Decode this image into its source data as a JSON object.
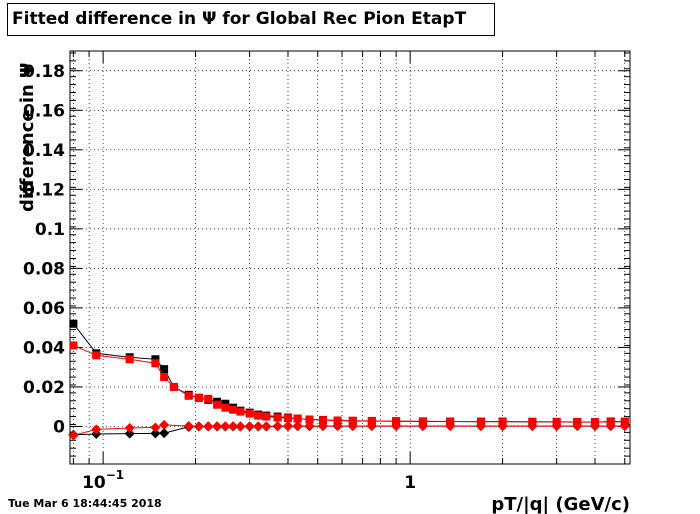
{
  "chart_data": {
    "type": "scatter",
    "title": "Fitted difference in  Ψ  for Global Rec Pion EtapT",
    "xlabel": "pT/|q| (GeV/c)",
    "ylabel": "difference in Ψ",
    "x_scale": "log",
    "xlim": [
      0.078,
      5.2
    ],
    "ylim": [
      -0.019,
      0.19
    ],
    "x_tick_labels": [
      {
        "value": 0.1,
        "label": "10",
        "exponent": "−1"
      },
      {
        "value": 1,
        "label": "1"
      }
    ],
    "y_ticks": [
      0,
      0.02,
      0.04,
      0.06,
      0.08,
      0.1,
      0.12,
      0.14,
      0.16,
      0.18
    ],
    "y_tick_labels": [
      "0",
      "0.02",
      "0.04",
      "0.06",
      "0.08",
      "0.1",
      "0.12",
      "0.14",
      "0.16",
      "0.18"
    ],
    "grid": true,
    "colors": {
      "black": "#000000",
      "red": "#ff0000"
    },
    "series": [
      {
        "color": "#000000",
        "marker": "square",
        "x": [
          0.08,
          0.095,
          0.122,
          0.148,
          0.158,
          0.17,
          0.19,
          0.205,
          0.22,
          0.235,
          0.25,
          0.265,
          0.28,
          0.3,
          0.32,
          0.34,
          0.37,
          0.4,
          0.43,
          0.47,
          0.52,
          0.58,
          0.65,
          0.75,
          0.9,
          1.1,
          1.35,
          1.7,
          2.0,
          2.5,
          3.0,
          3.5,
          4.0,
          4.5,
          5.0
        ],
        "y": [
          0.052,
          0.037,
          0.035,
          0.034,
          0.029,
          0.02,
          0.016,
          0.0145,
          0.0135,
          0.0125,
          0.0115,
          0.0095,
          0.008,
          0.007,
          0.006,
          0.0055,
          0.005,
          0.0045,
          0.004,
          0.0035,
          0.0033,
          0.003,
          0.0028,
          0.0027,
          0.0026,
          0.0025,
          0.0025,
          0.0024,
          0.0025,
          0.0023,
          0.0023,
          0.0022,
          0.0022,
          0.0025,
          0.0024
        ]
      },
      {
        "color": "#ff0000",
        "marker": "square",
        "x": [
          0.08,
          0.095,
          0.122,
          0.148,
          0.158,
          0.17,
          0.19,
          0.205,
          0.22,
          0.235,
          0.25,
          0.265,
          0.28,
          0.3,
          0.32,
          0.34,
          0.37,
          0.4,
          0.43,
          0.47,
          0.52,
          0.58,
          0.65,
          0.75,
          0.9,
          1.1,
          1.35,
          1.7,
          2.0,
          2.5,
          3.0,
          3.5,
          4.0,
          4.5,
          5.0
        ],
        "y": [
          0.041,
          0.036,
          0.034,
          0.032,
          0.025,
          0.02,
          0.0155,
          0.0145,
          0.014,
          0.011,
          0.0095,
          0.0085,
          0.0075,
          0.0065,
          0.0055,
          0.005,
          0.0045,
          0.0042,
          0.004,
          0.0035,
          0.0032,
          0.003,
          0.0029,
          0.0028,
          0.0027,
          0.0026,
          0.0025,
          0.0025,
          0.0024,
          0.0024,
          0.0023,
          0.0023,
          0.0022,
          0.0023,
          0.0024
        ]
      },
      {
        "color": "#000000",
        "marker": "diamond",
        "x": [
          0.08,
          0.095,
          0.122,
          0.148,
          0.158,
          0.19,
          0.205,
          0.22,
          0.235,
          0.25,
          0.265,
          0.28,
          0.3,
          0.32,
          0.34,
          0.37,
          0.4,
          0.43,
          0.47,
          0.52,
          0.58,
          0.65,
          0.75,
          0.9,
          1.1,
          1.35,
          1.7,
          2.0,
          2.5,
          3.0,
          3.5,
          4.0,
          4.5,
          5.0
        ],
        "y": [
          -0.0042,
          -0.0038,
          -0.0036,
          -0.0035,
          -0.0034,
          -0.0002,
          0.0,
          0.0,
          0.0,
          0.0,
          0.0,
          0.0,
          0.0,
          0.0,
          0.0,
          0.0001,
          0.0001,
          0.0001,
          0.0001,
          0.0002,
          0.0002,
          0.0002,
          0.0002,
          0.0002,
          0.0002,
          0.0002,
          0.0002,
          0.0002,
          0.0002,
          0.0002,
          0.0002,
          0.0002,
          0.0002,
          0.0002
        ]
      },
      {
        "color": "#ff0000",
        "marker": "diamond",
        "x": [
          0.08,
          0.095,
          0.122,
          0.148,
          0.158,
          0.19,
          0.205,
          0.22,
          0.235,
          0.25,
          0.265,
          0.28,
          0.3,
          0.32,
          0.34,
          0.37,
          0.4,
          0.43,
          0.47,
          0.52,
          0.58,
          0.65,
          0.75,
          0.9,
          1.1,
          1.35,
          1.7,
          2.0,
          2.5,
          3.0,
          3.5,
          4.0,
          4.5,
          5.0
        ],
        "y": [
          -0.0045,
          -0.0015,
          -0.0008,
          -0.0005,
          0.0008,
          0.0002,
          0.0001,
          0.0001,
          0.0001,
          0.0001,
          0.0001,
          0.0001,
          0.0001,
          0.0001,
          0.0001,
          0.0001,
          0.0002,
          0.0002,
          0.0002,
          0.0002,
          0.0002,
          0.0002,
          0.0002,
          0.0002,
          0.0002,
          0.0002,
          0.0002,
          0.0002,
          0.0002,
          0.0002,
          0.0002,
          0.0002,
          0.0002,
          0.0002
        ]
      }
    ]
  },
  "footer": {
    "timestamp": "Tue Mar  6 18:44:45 2018"
  }
}
